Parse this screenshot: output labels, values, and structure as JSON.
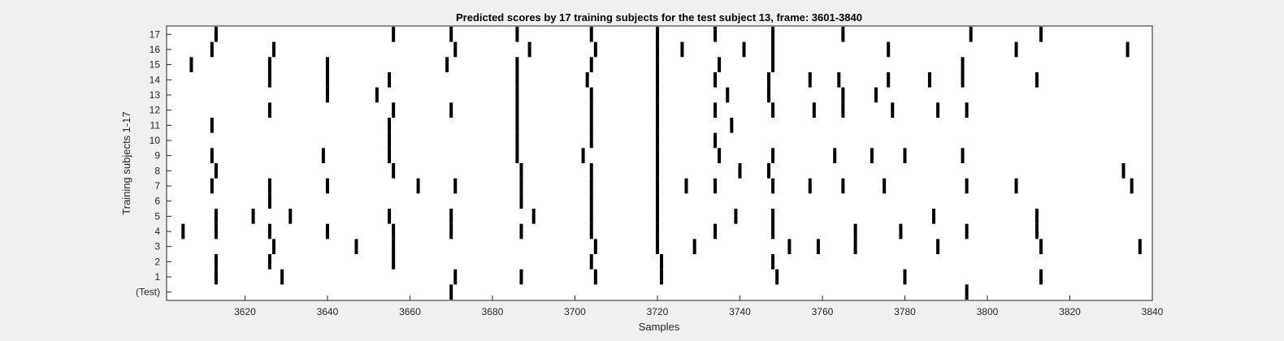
{
  "chart_data": {
    "type": "event raster",
    "title": "Predicted scores by 17 training subjects for the test subject 13, frame: 3601-3840",
    "xlabel": "Samples",
    "ylabel": "Training subjects 1-17",
    "xlim": [
      3601,
      3840
    ],
    "xticks": [
      3620,
      3640,
      3660,
      3680,
      3700,
      3720,
      3740,
      3760,
      3780,
      3800,
      3820,
      3840
    ],
    "rows": [
      "(Test)",
      "1",
      "2",
      "3",
      "4",
      "5",
      "6",
      "7",
      "8",
      "9",
      "10",
      "11",
      "12",
      "13",
      "14",
      "15",
      "16",
      "17"
    ],
    "grid": false,
    "colors": {
      "background": "#f0f0f0",
      "axes": "#ffffff",
      "event": "#000000"
    },
    "events": [
      {
        "row": "(Test)",
        "x": [
          3670,
          3795
        ]
      },
      {
        "row": "1",
        "x": [
          3613,
          3629,
          3671,
          3687,
          3705,
          3721,
          3749,
          3780,
          3813
        ]
      },
      {
        "row": "2",
        "x": [
          3613,
          3626,
          3656,
          3704,
          3721,
          3748
        ]
      },
      {
        "row": "3",
        "x": [
          3627,
          3647,
          3656,
          3705,
          3720,
          3729,
          3752,
          3759,
          3768,
          3788,
          3813,
          3837
        ]
      },
      {
        "row": "4",
        "x": [
          3605,
          3613,
          3626,
          3640,
          3656,
          3670,
          3687,
          3704,
          3720,
          3734,
          3748,
          3768,
          3779,
          3795,
          3812
        ]
      },
      {
        "row": "5",
        "x": [
          3613,
          3622,
          3631,
          3655,
          3670,
          3690,
          3704,
          3720,
          3739,
          3748,
          3787,
          3812
        ]
      },
      {
        "row": "6",
        "x": [
          3626,
          3687,
          3704,
          3720
        ]
      },
      {
        "row": "7",
        "x": [
          3612,
          3626,
          3640,
          3662,
          3671,
          3687,
          3704,
          3720,
          3727,
          3734,
          3748,
          3757,
          3765,
          3775,
          3795,
          3807,
          3835
        ]
      },
      {
        "row": "8",
        "x": [
          3613,
          3656,
          3687,
          3704,
          3720,
          3740,
          3747,
          3833
        ]
      },
      {
        "row": "9",
        "x": [
          3612,
          3639,
          3655,
          3686,
          3702,
          3720,
          3735,
          3748,
          3763,
          3772,
          3780,
          3794
        ]
      },
      {
        "row": "10",
        "x": [
          3655,
          3686,
          3704,
          3720,
          3734
        ]
      },
      {
        "row": "11",
        "x": [
          3612,
          3655,
          3686,
          3704,
          3720,
          3738
        ]
      },
      {
        "row": "12",
        "x": [
          3626,
          3656,
          3670,
          3686,
          3704,
          3720,
          3734,
          3748,
          3758,
          3765,
          3777,
          3788,
          3795
        ]
      },
      {
        "row": "13",
        "x": [
          3640,
          3652,
          3686,
          3704,
          3720,
          3737,
          3747,
          3765,
          3773
        ]
      },
      {
        "row": "14",
        "x": [
          3626,
          3640,
          3655,
          3686,
          3703,
          3720,
          3734,
          3747,
          3757,
          3764,
          3776,
          3786,
          3794,
          3812
        ]
      },
      {
        "row": "15",
        "x": [
          3607,
          3626,
          3640,
          3669,
          3686,
          3704,
          3720,
          3735,
          3748,
          3794
        ]
      },
      {
        "row": "16",
        "x": [
          3612,
          3627,
          3671,
          3689,
          3705,
          3720,
          3726,
          3741,
          3748,
          3776,
          3807,
          3834
        ]
      },
      {
        "row": "17",
        "x": [
          3613,
          3656,
          3670,
          3686,
          3704,
          3720,
          3734,
          3748,
          3765,
          3796,
          3813
        ]
      }
    ]
  }
}
